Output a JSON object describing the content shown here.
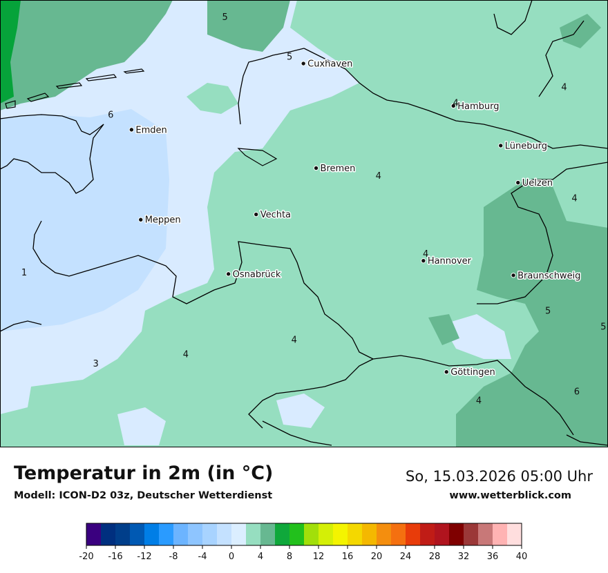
{
  "map": {
    "cities": [
      {
        "name": "Cuxhaven",
        "lon": 8.7,
        "lat": 53.87
      },
      {
        "name": "Hamburg",
        "lon": 10.0,
        "lat": 53.55
      },
      {
        "name": "Emden",
        "lon": 7.21,
        "lat": 53.37
      },
      {
        "name": "Lüneburg",
        "lon": 10.41,
        "lat": 53.25
      },
      {
        "name": "Bremen",
        "lon": 8.81,
        "lat": 53.08
      },
      {
        "name": "Uelzen",
        "lon": 10.56,
        "lat": 52.97
      },
      {
        "name": "Vechta",
        "lon": 8.29,
        "lat": 52.73
      },
      {
        "name": "Meppen",
        "lon": 7.29,
        "lat": 52.69
      },
      {
        "name": "Hannover",
        "lon": 9.74,
        "lat": 52.38
      },
      {
        "name": "Osnabrück",
        "lon": 8.05,
        "lat": 52.28
      },
      {
        "name": "Braunschweig",
        "lon": 10.52,
        "lat": 52.27
      },
      {
        "name": "Göttingen",
        "lon": 9.94,
        "lat": 51.54
      }
    ],
    "values": [
      {
        "text": "5",
        "lon": 8.02,
        "lat": 54.2
      },
      {
        "text": "5",
        "lon": 8.58,
        "lat": 53.9
      },
      {
        "text": "6",
        "lon": 7.03,
        "lat": 53.46
      },
      {
        "text": "4",
        "lon": 10.02,
        "lat": 53.55
      },
      {
        "text": "4",
        "lon": 10.96,
        "lat": 53.67
      },
      {
        "text": "4",
        "lon": 9.35,
        "lat": 53.0
      },
      {
        "text": "4",
        "lon": 11.05,
        "lat": 52.83
      },
      {
        "text": "4",
        "lon": 9.76,
        "lat": 52.41
      },
      {
        "text": "1",
        "lon": 6.28,
        "lat": 52.27
      },
      {
        "text": "5",
        "lon": 10.82,
        "lat": 51.98
      },
      {
        "text": "5",
        "lon": 11.3,
        "lat": 51.86
      },
      {
        "text": "4",
        "lon": 8.62,
        "lat": 51.76
      },
      {
        "text": "4",
        "lon": 7.68,
        "lat": 51.65
      },
      {
        "text": "3",
        "lon": 6.9,
        "lat": 51.58
      },
      {
        "text": "6",
        "lon": 11.07,
        "lat": 51.37
      },
      {
        "text": "4",
        "lon": 10.22,
        "lat": 51.3
      }
    ]
  },
  "footer": {
    "title": "Temperatur in 2m (in °C)",
    "model": "Modell: ICON-D2 03z, Deutscher Wetterdienst",
    "datetime": "So, 15.03.2026 05:00 Uhr",
    "site": "www.wetterblick.com"
  },
  "legend": {
    "min": -20,
    "max": 40,
    "ticks": [
      "-20",
      "-16",
      "-12",
      "-8",
      "-4",
      "0",
      "4",
      "8",
      "12",
      "16",
      "20",
      "24",
      "28",
      "32",
      "36",
      "40"
    ],
    "colors": [
      "#3a007f",
      "#002f7f",
      "#003e8a",
      "#0059b3",
      "#007ee6",
      "#2a9bff",
      "#6cb4ff",
      "#8ec5ff",
      "#a8d3ff",
      "#c4e1ff",
      "#dbeeff",
      "#96dec0",
      "#67b891",
      "#0fa83b",
      "#22c01c",
      "#a2df0a",
      "#d4ef06",
      "#f4f400",
      "#f4d800",
      "#f4b800",
      "#f48e0e",
      "#f47010",
      "#e83c0a",
      "#c01c16",
      "#b0141e",
      "#7f0000",
      "#9b3838",
      "#c87878",
      "#ffb3b3",
      "#ffdede"
    ]
  },
  "colors": {
    "sea": "#d9ebff",
    "cold_land": "#c4e1ff",
    "land_4": "#96dec0",
    "land_5": "#67b891",
    "land_6": "#06a33a",
    "border": "#000000"
  }
}
